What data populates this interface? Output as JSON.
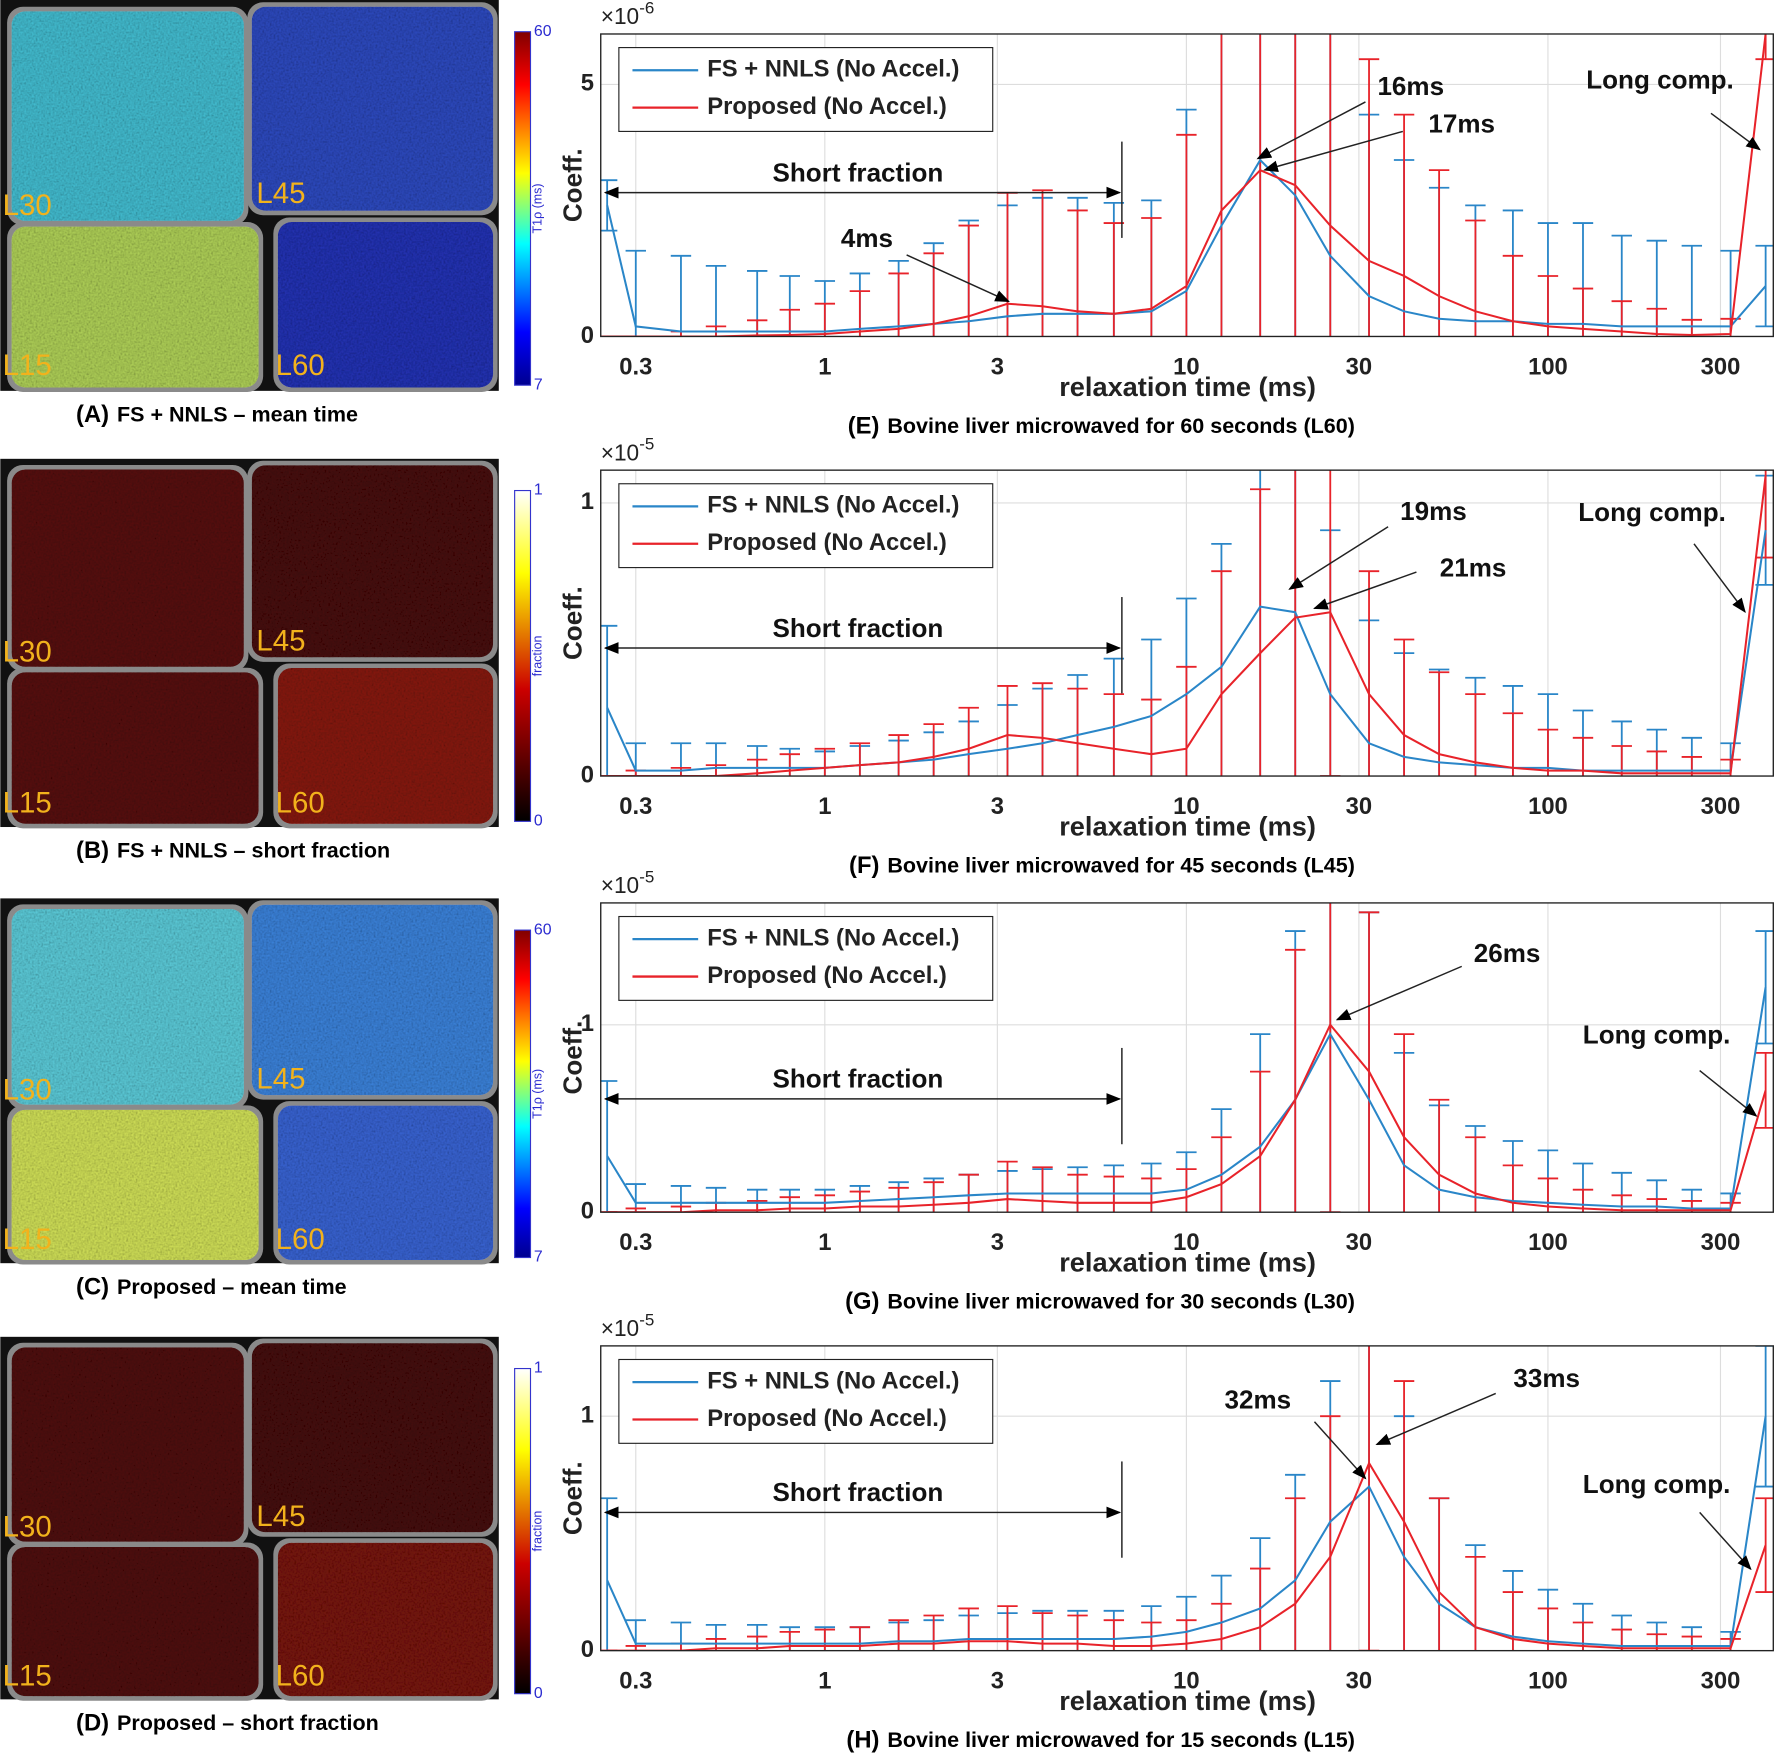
{
  "panels": [
    {
      "label": "(A)",
      "caption": "FS + NNLS – mean time",
      "colorbar": {
        "label": "T1ρ (ms)",
        "lim": [
          7,
          60
        ],
        "ticks": [
          7,
          60
        ]
      },
      "tissues": [
        "L30",
        "L45",
        "L15",
        "L60"
      ]
    },
    {
      "label": "(B)",
      "caption": "FS + NNLS – short fraction",
      "colorbar": {
        "label": "fraction",
        "lim": [
          0,
          1
        ],
        "ticks": [
          0,
          1
        ]
      },
      "tissues": [
        "L30",
        "L45",
        "L15",
        "L60"
      ]
    },
    {
      "label": "(C)",
      "caption": "Proposed – mean time",
      "colorbar": {
        "label": "T1ρ (ms)",
        "lim": [
          7,
          60
        ],
        "ticks": [
          7,
          60
        ]
      },
      "tissues": [
        "L30",
        "L45",
        "L15",
        "L60"
      ]
    },
    {
      "label": "(D)",
      "caption": "Proposed – short fraction",
      "colorbar": {
        "label": "fraction",
        "lim": [
          0,
          1
        ],
        "ticks": [
          0,
          1
        ]
      },
      "tissues": [
        "L30",
        "L45",
        "L15",
        "L60"
      ]
    }
  ],
  "chart_data": [
    {
      "type": "line",
      "panel": "(E)",
      "caption": "Bovine liver microwaved for 60 seconds (L60)",
      "xlabel": "relaxation time (ms)",
      "ylabel": "Coeff.",
      "y_scale_base": "×10",
      "y_scale_exponent": "-6",
      "xscale": "log",
      "grid": true,
      "legend": "upper left",
      "xlim": [
        0.24,
        420
      ],
      "xticks": [
        0.3,
        1,
        3,
        10,
        30,
        100,
        300
      ],
      "ylim": [
        0,
        6
      ],
      "yticks": [
        0,
        5
      ],
      "x": [
        0.25,
        0.3,
        0.4,
        0.5,
        0.65,
        0.8,
        1,
        1.25,
        1.6,
        2,
        2.5,
        3.2,
        4,
        5,
        6.3,
        8,
        10,
        12.5,
        16,
        20,
        25,
        32,
        40,
        50,
        63,
        80,
        100,
        125,
        160,
        200,
        250,
        320,
        400
      ],
      "series": [
        {
          "name": "FS + NNLS (No Accel.)",
          "color": "#2a86c8",
          "values": [
            2.6,
            0.2,
            0.1,
            0.1,
            0.1,
            0.1,
            0.1,
            0.15,
            0.2,
            0.25,
            0.3,
            0.4,
            0.45,
            0.45,
            0.45,
            0.5,
            0.9,
            2.2,
            3.5,
            2.8,
            1.6,
            0.8,
            0.5,
            0.35,
            0.3,
            0.3,
            0.25,
            0.25,
            0.2,
            0.2,
            0.2,
            0.2,
            1.0
          ],
          "errors": [
            0.5,
            1.5,
            1.5,
            1.3,
            1.2,
            1.1,
            1.0,
            1.1,
            1.3,
            1.6,
            2.0,
            2.2,
            2.3,
            2.3,
            2.2,
            2.2,
            3.6,
            5.5,
            6,
            6,
            5.5,
            3.6,
            3.0,
            2.6,
            2.3,
            2.2,
            2.0,
            2.0,
            1.8,
            1.7,
            1.6,
            1.5,
            0.8
          ]
        },
        {
          "name": "Proposed (No Accel.)",
          "color": "#e8232a",
          "values": [
            0,
            0,
            0,
            0,
            0.02,
            0.03,
            0.05,
            0.1,
            0.15,
            0.25,
            0.4,
            0.65,
            0.6,
            0.5,
            0.45,
            0.55,
            1.0,
            2.5,
            3.3,
            3.0,
            2.2,
            1.5,
            1.2,
            0.8,
            0.5,
            0.3,
            0.2,
            0.15,
            0.1,
            0.05,
            0.03,
            0.05,
            6.0
          ],
          "errors": [
            0,
            0,
            0.1,
            0.2,
            0.3,
            0.5,
            0.6,
            0.8,
            1.1,
            1.4,
            1.8,
            2.2,
            2.3,
            2.0,
            1.8,
            1.8,
            3.0,
            4.5,
            5.5,
            5.5,
            5.0,
            4.0,
            3.2,
            2.5,
            1.8,
            1.3,
            1.0,
            0.8,
            0.6,
            0.5,
            0.3,
            0.3,
            0.5
          ]
        }
      ],
      "annotations": [
        "Short fraction",
        "4ms",
        "16ms",
        "17ms",
        "Long comp."
      ]
    },
    {
      "type": "line",
      "panel": "(F)",
      "caption": "Bovine liver microwaved for 45 seconds (L45)",
      "xlabel": "relaxation time (ms)",
      "ylabel": "Coeff.",
      "y_scale_base": "×10",
      "y_scale_exponent": "-5",
      "xscale": "log",
      "grid": true,
      "legend": "upper left",
      "xlim": [
        0.24,
        420
      ],
      "xticks": [
        0.3,
        1,
        3,
        10,
        30,
        100,
        300
      ],
      "ylim": [
        0,
        1.12
      ],
      "yticks": [
        0,
        1
      ],
      "x": [
        0.25,
        0.3,
        0.4,
        0.5,
        0.65,
        0.8,
        1,
        1.25,
        1.6,
        2,
        2.5,
        3.2,
        4,
        5,
        6.3,
        8,
        10,
        12.5,
        16,
        20,
        25,
        32,
        40,
        50,
        63,
        80,
        100,
        125,
        160,
        200,
        250,
        320,
        400
      ],
      "series": [
        {
          "name": "FS + NNLS (No Accel.)",
          "color": "#2a86c8",
          "values": [
            0.25,
            0.02,
            0.02,
            0.03,
            0.03,
            0.03,
            0.03,
            0.04,
            0.05,
            0.06,
            0.08,
            0.1,
            0.12,
            0.15,
            0.18,
            0.22,
            0.3,
            0.4,
            0.62,
            0.6,
            0.3,
            0.12,
            0.07,
            0.05,
            0.04,
            0.03,
            0.03,
            0.02,
            0.02,
            0.02,
            0.02,
            0.02,
            0.9
          ],
          "errors": [
            0.3,
            0.1,
            0.1,
            0.09,
            0.08,
            0.07,
            0.06,
            0.07,
            0.08,
            0.1,
            0.12,
            0.16,
            0.2,
            0.22,
            0.25,
            0.28,
            0.35,
            0.45,
            0.7,
            0.8,
            0.6,
            0.45,
            0.38,
            0.34,
            0.32,
            0.3,
            0.27,
            0.22,
            0.18,
            0.15,
            0.12,
            0.1,
            0.2
          ]
        },
        {
          "name": "Proposed (No Accel.)",
          "color": "#e8232a",
          "values": [
            0,
            0,
            0,
            0,
            0.01,
            0.02,
            0.03,
            0.04,
            0.05,
            0.07,
            0.1,
            0.15,
            0.14,
            0.12,
            0.1,
            0.08,
            0.1,
            0.3,
            0.45,
            0.58,
            0.6,
            0.3,
            0.15,
            0.08,
            0.05,
            0.03,
            0.02,
            0.02,
            0.01,
            0.01,
            0.01,
            0.01,
            1.1
          ],
          "errors": [
            0,
            0.02,
            0.03,
            0.04,
            0.05,
            0.06,
            0.07,
            0.08,
            0.1,
            0.12,
            0.15,
            0.18,
            0.2,
            0.2,
            0.2,
            0.2,
            0.3,
            0.45,
            0.6,
            0.65,
            0.6,
            0.45,
            0.35,
            0.3,
            0.25,
            0.2,
            0.15,
            0.12,
            0.1,
            0.08,
            0.06,
            0.05,
            0.3
          ]
        }
      ],
      "annotations": [
        "Short fraction",
        "19ms",
        "21ms",
        "Long comp."
      ]
    },
    {
      "type": "line",
      "panel": "(G)",
      "caption": "Bovine liver microwaved for 30 seconds (L30)",
      "xlabel": "relaxation time (ms)",
      "ylabel": "Coeff.",
      "y_scale_base": "×10",
      "y_scale_exponent": "-5",
      "xscale": "log",
      "grid": true,
      "legend": "upper left",
      "xlim": [
        0.24,
        420
      ],
      "xticks": [
        0.3,
        1,
        3,
        10,
        30,
        100,
        300
      ],
      "ylim": [
        0,
        1.65
      ],
      "yticks": [
        0,
        1
      ],
      "x": [
        0.25,
        0.3,
        0.4,
        0.5,
        0.65,
        0.8,
        1,
        1.25,
        1.6,
        2,
        2.5,
        3.2,
        4,
        5,
        6.3,
        8,
        10,
        12.5,
        16,
        20,
        25,
        32,
        40,
        50,
        63,
        80,
        100,
        125,
        160,
        200,
        250,
        320,
        400
      ],
      "series": [
        {
          "name": "FS + NNLS (No Accel.)",
          "color": "#2a86c8",
          "values": [
            0.3,
            0.05,
            0.05,
            0.05,
            0.05,
            0.05,
            0.05,
            0.06,
            0.07,
            0.08,
            0.09,
            0.1,
            0.1,
            0.1,
            0.1,
            0.1,
            0.12,
            0.2,
            0.35,
            0.6,
            0.95,
            0.6,
            0.25,
            0.12,
            0.08,
            0.06,
            0.05,
            0.04,
            0.03,
            0.03,
            0.02,
            0.02,
            1.2
          ],
          "errors": [
            0.4,
            0.1,
            0.09,
            0.08,
            0.07,
            0.07,
            0.07,
            0.08,
            0.09,
            0.1,
            0.11,
            0.12,
            0.13,
            0.14,
            0.15,
            0.16,
            0.2,
            0.35,
            0.6,
            0.9,
            1.2,
            1.0,
            0.6,
            0.45,
            0.38,
            0.32,
            0.28,
            0.22,
            0.18,
            0.14,
            0.1,
            0.08,
            0.3
          ]
        },
        {
          "name": "Proposed (No Accel.)",
          "color": "#e8232a",
          "values": [
            0,
            0,
            0,
            0.01,
            0.01,
            0.02,
            0.02,
            0.03,
            0.03,
            0.04,
            0.05,
            0.07,
            0.06,
            0.05,
            0.05,
            0.05,
            0.08,
            0.15,
            0.3,
            0.6,
            1.0,
            0.75,
            0.4,
            0.2,
            0.1,
            0.05,
            0.03,
            0.02,
            0.01,
            0.01,
            0.01,
            0.01,
            0.65
          ],
          "errors": [
            0,
            0.02,
            0.03,
            0.04,
            0.05,
            0.06,
            0.07,
            0.08,
            0.1,
            0.12,
            0.15,
            0.2,
            0.18,
            0.15,
            0.14,
            0.13,
            0.15,
            0.25,
            0.45,
            0.8,
            1.0,
            0.85,
            0.55,
            0.4,
            0.3,
            0.2,
            0.15,
            0.1,
            0.08,
            0.06,
            0.05,
            0.04,
            0.2
          ]
        }
      ],
      "annotations": [
        "Short fraction",
        "26ms",
        "Long comp."
      ]
    },
    {
      "type": "line",
      "panel": "(H)",
      "caption": "Bovine liver microwaved for 15 seconds (L15)",
      "xlabel": "relaxation time (ms)",
      "ylabel": "Coeff.",
      "y_scale_base": "×10",
      "y_scale_exponent": "-5",
      "xscale": "log",
      "grid": true,
      "legend": "upper left",
      "xlim": [
        0.24,
        420
      ],
      "xticks": [
        0.3,
        1,
        3,
        10,
        30,
        100,
        300
      ],
      "ylim": [
        0,
        1.3
      ],
      "yticks": [
        0,
        1
      ],
      "x": [
        0.25,
        0.3,
        0.4,
        0.5,
        0.65,
        0.8,
        1,
        1.25,
        1.6,
        2,
        2.5,
        3.2,
        4,
        5,
        6.3,
        8,
        10,
        12.5,
        16,
        20,
        25,
        32,
        40,
        50,
        63,
        80,
        100,
        125,
        160,
        200,
        250,
        320,
        400
      ],
      "series": [
        {
          "name": "FS + NNLS (No Accel.)",
          "color": "#2a86c8",
          "values": [
            0.3,
            0.03,
            0.03,
            0.03,
            0.03,
            0.03,
            0.03,
            0.03,
            0.04,
            0.04,
            0.05,
            0.05,
            0.05,
            0.05,
            0.05,
            0.06,
            0.08,
            0.12,
            0.18,
            0.3,
            0.55,
            0.7,
            0.4,
            0.2,
            0.1,
            0.06,
            0.04,
            0.03,
            0.02,
            0.02,
            0.02,
            0.02,
            1.0
          ],
          "errors": [
            0.35,
            0.1,
            0.09,
            0.08,
            0.08,
            0.07,
            0.07,
            0.07,
            0.08,
            0.09,
            0.1,
            0.11,
            0.12,
            0.12,
            0.12,
            0.13,
            0.15,
            0.2,
            0.3,
            0.45,
            0.6,
            0.8,
            0.6,
            0.45,
            0.35,
            0.28,
            0.22,
            0.17,
            0.13,
            0.1,
            0.08,
            0.06,
            0.3
          ]
        },
        {
          "name": "Proposed (No Accel.)",
          "color": "#e8232a",
          "values": [
            0,
            0,
            0,
            0.01,
            0.01,
            0.02,
            0.02,
            0.02,
            0.03,
            0.03,
            0.04,
            0.04,
            0.03,
            0.03,
            0.02,
            0.02,
            0.03,
            0.05,
            0.1,
            0.2,
            0.4,
            0.8,
            0.55,
            0.25,
            0.1,
            0.05,
            0.03,
            0.02,
            0.01,
            0.01,
            0.01,
            0.01,
            0.45
          ],
          "errors": [
            0,
            0.02,
            0.03,
            0.04,
            0.05,
            0.06,
            0.07,
            0.08,
            0.1,
            0.12,
            0.14,
            0.15,
            0.13,
            0.12,
            0.11,
            0.1,
            0.1,
            0.15,
            0.25,
            0.45,
            0.6,
            0.8,
            0.6,
            0.4,
            0.3,
            0.2,
            0.15,
            0.1,
            0.08,
            0.06,
            0.05,
            0.04,
            0.2
          ]
        }
      ],
      "annotations": [
        "Short fraction",
        "32ms",
        "33ms",
        "Long comp."
      ]
    }
  ]
}
